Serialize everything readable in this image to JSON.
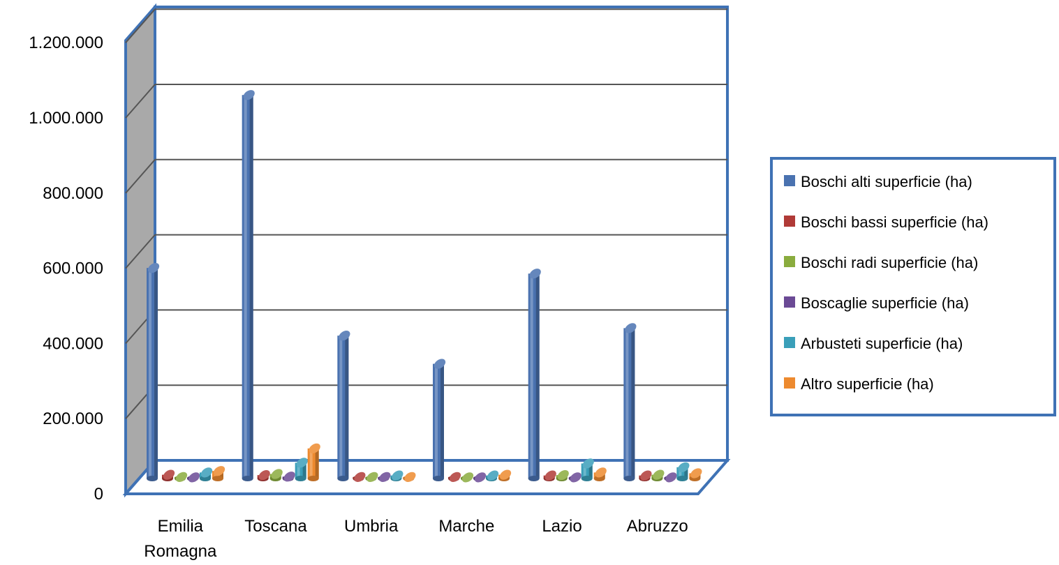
{
  "chart_data": {
    "type": "bar",
    "title": "",
    "xlabel": "",
    "ylabel": "",
    "ylim": [
      0,
      1200000
    ],
    "y_ticks": [
      "0",
      "200.000",
      "400.000",
      "600.000",
      "800.000",
      "1.000.000",
      "1.200.000"
    ],
    "y_tick_values": [
      0,
      200000,
      400000,
      600000,
      800000,
      1000000,
      1200000
    ],
    "grid": true,
    "style": "3d-clustered-cylinder",
    "legend_position": "right",
    "categories": [
      [
        "Emilia",
        "Romagna"
      ],
      [
        "Toscana"
      ],
      [
        "Umbria"
      ],
      [
        "Marche"
      ],
      [
        "Lazio"
      ],
      [
        "Abruzzo"
      ]
    ],
    "series": [
      {
        "name": "Boschi alti superficie (ha)",
        "color": "#4a72b0",
        "values": [
          560000,
          1020000,
          380000,
          305000,
          545000,
          400000
        ]
      },
      {
        "name": "Boschi bassi superficie (ha)",
        "color": "#b03a37",
        "values": [
          10000,
          9000,
          4000,
          4000,
          8000,
          8000
        ]
      },
      {
        "name": "Boschi radi superficie (ha)",
        "color": "#8aac3e",
        "values": [
          4000,
          12000,
          4000,
          3000,
          9000,
          10000
        ]
      },
      {
        "name": "Boscaglie superficie (ha)",
        "color": "#6b4a95",
        "values": [
          3000,
          5000,
          4000,
          3000,
          3000,
          3000
        ]
      },
      {
        "name": "Arbusteti superficie (ha)",
        "color": "#3a9fb9",
        "values": [
          16000,
          42000,
          8000,
          8000,
          40000,
          30000
        ]
      },
      {
        "name": "Altro superficie (ha)",
        "color": "#ed8a2f",
        "values": [
          20000,
          80000,
          4000,
          10000,
          16000,
          14000
        ]
      }
    ]
  }
}
